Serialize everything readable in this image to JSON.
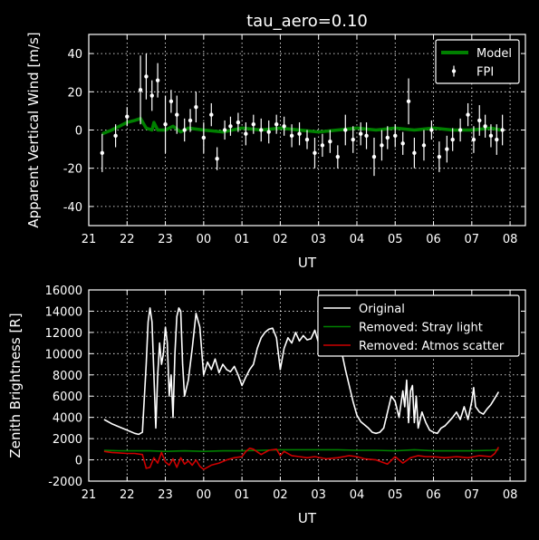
{
  "title": "tau_aero=0.10",
  "chart_data": [
    {
      "type": "line",
      "title": "tau_aero=0.10",
      "xlabel": "UT",
      "ylabel": "Apparent Vertical Wind [m/s]",
      "xlim": [
        21.0,
        32.4
      ],
      "ylim": [
        -50,
        50
      ],
      "xticks": [
        21,
        22,
        23,
        24,
        25,
        26,
        27,
        28,
        29,
        30,
        31,
        32
      ],
      "xticklabels": [
        "21",
        "22",
        "23",
        "00",
        "01",
        "02",
        "03",
        "04",
        "05",
        "06",
        "07",
        "08"
      ],
      "yticks": [
        -40,
        -20,
        0,
        20,
        40
      ],
      "grid": true,
      "legend": "top-right",
      "colors": {
        "Model": "#008000",
        "FPI": "#ffffff"
      },
      "series": [
        {
          "name": "Model",
          "x": [
            21.35,
            21.6,
            21.8,
            22.0,
            22.2,
            22.35,
            22.5,
            22.65,
            22.7,
            22.8,
            23.0,
            23.2,
            23.4,
            23.6,
            24.0,
            24.5,
            25.0,
            25.5,
            26.0,
            26.5,
            27.0,
            27.5,
            28.0,
            28.5,
            29.0,
            29.5,
            30.0,
            30.5,
            31.0,
            31.5,
            31.75
          ],
          "y": [
            -2,
            0,
            2,
            4,
            5,
            6,
            1,
            0,
            4,
            0,
            0,
            2,
            -1,
            1,
            0,
            -1,
            1,
            0,
            1,
            0,
            -1,
            0,
            1,
            0,
            1,
            0,
            1,
            0,
            0,
            1,
            0
          ]
        },
        {
          "name": "FPI",
          "x": [
            21.35,
            21.7,
            22.0,
            22.35,
            22.5,
            22.65,
            22.8,
            23.0,
            23.15,
            23.3,
            23.5,
            23.65,
            23.8,
            24.0,
            24.2,
            24.35,
            24.55,
            24.7,
            24.9,
            25.1,
            25.3,
            25.5,
            25.7,
            25.9,
            26.1,
            26.3,
            26.5,
            26.7,
            26.9,
            27.1,
            27.3,
            27.5,
            27.7,
            27.9,
            28.1,
            28.25,
            28.45,
            28.65,
            28.8,
            29.0,
            29.2,
            29.35,
            29.5,
            29.75,
            29.95,
            30.15,
            30.35,
            30.5,
            30.7,
            30.9,
            31.05,
            31.2,
            31.35,
            31.5,
            31.65,
            31.8
          ],
          "y": [
            -12,
            -3,
            7,
            21,
            28,
            18,
            26,
            3,
            15,
            8,
            0,
            5,
            12,
            -4,
            8,
            -15,
            0,
            2,
            4,
            -2,
            3,
            0,
            -1,
            3,
            2,
            -3,
            -2,
            -5,
            -12,
            -8,
            -6,
            -14,
            0,
            -5,
            -2,
            -3,
            -14,
            -8,
            -4,
            -3,
            -7,
            15,
            -12,
            -8,
            0,
            -14,
            -10,
            -5,
            0,
            8,
            -5,
            5,
            2,
            -3,
            -5,
            0
          ],
          "yerr": [
            10,
            6,
            5,
            18,
            12,
            8,
            9,
            15,
            6,
            10,
            6,
            6,
            8,
            8,
            6,
            6,
            5,
            5,
            5,
            6,
            5,
            6,
            6,
            5,
            5,
            6,
            6,
            5,
            8,
            6,
            6,
            6,
            8,
            7,
            6,
            7,
            10,
            8,
            6,
            6,
            6,
            12,
            8,
            8,
            5,
            8,
            7,
            6,
            6,
            6,
            7,
            8,
            6,
            6,
            8,
            8
          ]
        }
      ]
    },
    {
      "type": "line",
      "xlabel": "UT",
      "ylabel": "Zenith Brightness [R]",
      "xlim": [
        21.0,
        32.4
      ],
      "ylim": [
        -2000,
        16000
      ],
      "xticks": [
        21,
        22,
        23,
        24,
        25,
        26,
        27,
        28,
        29,
        30,
        31,
        32
      ],
      "xticklabels": [
        "21",
        "22",
        "23",
        "00",
        "01",
        "02",
        "03",
        "04",
        "05",
        "06",
        "07",
        "08"
      ],
      "yticks": [
        -2000,
        0,
        2000,
        4000,
        6000,
        8000,
        10000,
        12000,
        14000,
        16000
      ],
      "grid": true,
      "legend": "top-right",
      "colors": {
        "Original": "#ffffff",
        "Removed: Stray light": "#008000",
        "Removed: Atmos scatter": "#cc0000"
      },
      "series": [
        {
          "name": "Original",
          "x": [
            21.4,
            21.6,
            21.8,
            22.0,
            22.2,
            22.3,
            22.4,
            22.5,
            22.55,
            22.6,
            22.65,
            22.7,
            22.75,
            22.8,
            22.85,
            22.9,
            22.95,
            23.0,
            23.05,
            23.1,
            23.15,
            23.2,
            23.25,
            23.3,
            23.35,
            23.4,
            23.45,
            23.5,
            23.6,
            23.7,
            23.8,
            23.9,
            24.0,
            24.1,
            24.2,
            24.3,
            24.4,
            24.5,
            24.6,
            24.7,
            24.8,
            24.9,
            25.0,
            25.1,
            25.2,
            25.3,
            25.4,
            25.5,
            25.6,
            25.7,
            25.8,
            25.9,
            26.0,
            26.1,
            26.2,
            26.3,
            26.4,
            26.5,
            26.6,
            26.7,
            26.8,
            26.9,
            27.0,
            27.1,
            27.2,
            27.3,
            27.4,
            27.5,
            27.6,
            27.7,
            27.8,
            27.9,
            28.0,
            28.1,
            28.2,
            28.3,
            28.4,
            28.5,
            28.6,
            28.7,
            28.8,
            28.9,
            29.0,
            29.1,
            29.2,
            29.25,
            29.3,
            29.35,
            29.4,
            29.45,
            29.5,
            29.55,
            29.6,
            29.7,
            29.8,
            29.9,
            30.0,
            30.1,
            30.2,
            30.3,
            30.4,
            30.5,
            30.6,
            30.7,
            30.8,
            30.9,
            31.0,
            31.05,
            31.1,
            31.2,
            31.3,
            31.4,
            31.5,
            31.6,
            31.7
          ],
          "y": [
            3800,
            3400,
            3100,
            2800,
            2500,
            2400,
            2600,
            9000,
            13000,
            14300,
            13000,
            8000,
            3000,
            8000,
            11000,
            9000,
            10000,
            12500,
            11000,
            6000,
            8000,
            4000,
            10000,
            13500,
            14300,
            14000,
            9000,
            6000,
            7500,
            10500,
            13800,
            12500,
            8000,
            9200,
            8500,
            9500,
            8200,
            9000,
            8500,
            8300,
            8800,
            8000,
            7000,
            7800,
            8500,
            9000,
            10500,
            11500,
            12000,
            12300,
            12400,
            11500,
            8500,
            10500,
            11500,
            11000,
            12000,
            11200,
            11700,
            11300,
            11400,
            12200,
            11000,
            10500,
            10800,
            10500,
            10000,
            9800,
            10200,
            8500,
            7000,
            5500,
            4200,
            3600,
            3300,
            3000,
            2600,
            2500,
            2600,
            3000,
            4500,
            6000,
            5500,
            4000,
            6500,
            5000,
            7500,
            3500,
            6500,
            7000,
            3500,
            6000,
            3000,
            4500,
            3500,
            2800,
            2600,
            2500,
            3000,
            3200,
            3600,
            4000,
            4500,
            3800,
            5000,
            3800,
            5500,
            6800,
            5000,
            4500,
            4300,
            4800,
            5200,
            5800,
            6400
          ]
        },
        {
          "name": "Removed: Stray light",
          "x": [
            21.4,
            21.8,
            22.2,
            22.6,
            23.0,
            23.5,
            24.0,
            24.5,
            25.0,
            25.5,
            26.0,
            26.5,
            27.0,
            27.5,
            28.0,
            28.5,
            29.0,
            29.5,
            30.0,
            30.5,
            31.0,
            31.5,
            31.7
          ],
          "y": [
            900,
            850,
            850,
            850,
            800,
            850,
            800,
            850,
            850,
            900,
            950,
            950,
            950,
            950,
            900,
            900,
            850,
            950,
            850,
            850,
            850,
            900,
            950
          ]
        },
        {
          "name": "Removed: Atmos scatter",
          "x": [
            21.4,
            21.6,
            21.8,
            22.0,
            22.2,
            22.4,
            22.5,
            22.6,
            22.7,
            22.8,
            22.9,
            23.0,
            23.1,
            23.2,
            23.3,
            23.4,
            23.5,
            23.6,
            23.7,
            23.8,
            23.9,
            24.0,
            24.2,
            24.4,
            24.6,
            24.8,
            25.0,
            25.1,
            25.2,
            25.3,
            25.5,
            25.7,
            25.9,
            26.0,
            26.1,
            26.3,
            26.5,
            26.7,
            26.9,
            27.2,
            27.5,
            27.8,
            28.0,
            28.2,
            28.5,
            28.8,
            29.0,
            29.2,
            29.4,
            29.6,
            29.8,
            30.0,
            30.3,
            30.6,
            30.9,
            31.2,
            31.5,
            31.6,
            31.7
          ],
          "y": [
            800,
            700,
            650,
            600,
            600,
            500,
            -800,
            -700,
            200,
            -300,
            700,
            -200,
            -500,
            100,
            -700,
            200,
            -400,
            -100,
            -500,
            0,
            -600,
            -900,
            -500,
            -300,
            0,
            200,
            300,
            800,
            1100,
            1000,
            500,
            900,
            1000,
            400,
            800,
            400,
            300,
            200,
            300,
            100,
            200,
            400,
            300,
            100,
            0,
            -400,
            300,
            -300,
            200,
            400,
            300,
            300,
            200,
            300,
            200,
            400,
            300,
            600,
            1200
          ]
        }
      ]
    }
  ]
}
